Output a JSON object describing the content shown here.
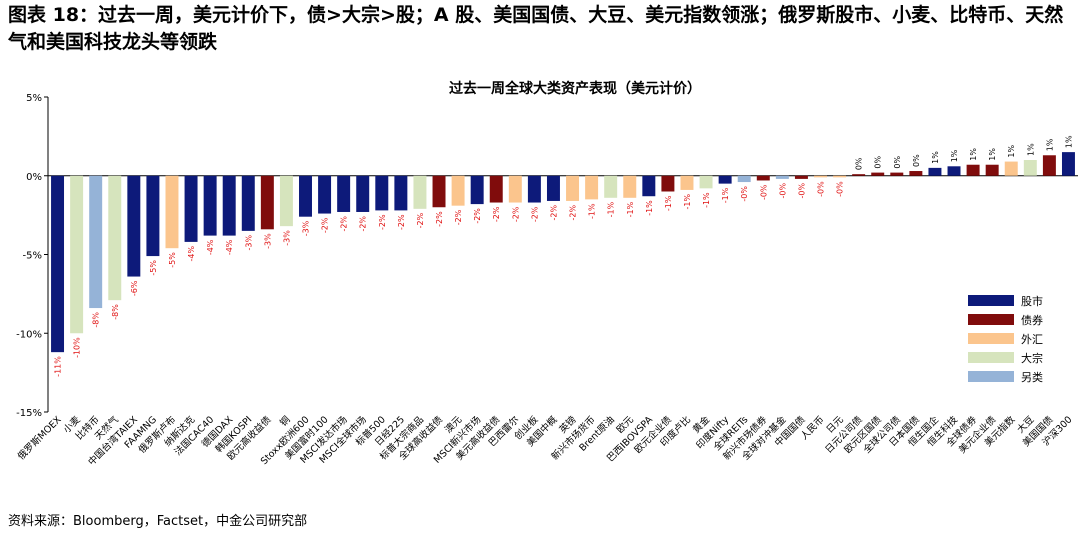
{
  "figure_title": "图表 18：过去一周，美元计价下，债>大宗>股；A 股、美国国债、大豆、美元指数领涨；俄罗斯股市、小麦、比特币、天然气和美国科技龙头等领跌",
  "source": "资料来源：Bloomberg，Factset，中金公司研究部",
  "colors": {
    "股市": "#0d1a7a",
    "债券": "#800c0c",
    "外汇": "#fbc58d",
    "大宗": "#d6e4bd",
    "另类": "#95b3d7"
  },
  "chart_data": {
    "type": "bar",
    "title": "过去一周全球大类资产表现（美元计价）",
    "ylim": [
      -15,
      5
    ],
    "yticks": [
      5,
      0,
      -5,
      -10,
      -15
    ],
    "ytick_labels": [
      "5%",
      "0%",
      "-5%",
      "-10%",
      "-15%"
    ],
    "legend_position": "right",
    "legend": [
      "股市",
      "债券",
      "外汇",
      "大宗",
      "另类"
    ],
    "categories": [
      "俄罗斯MOEX",
      "小麦",
      "比特币",
      "天然气",
      "中国台湾TAIEX",
      "FAAMNG",
      "俄罗斯卢布",
      "纳斯达克",
      "法国CAC40",
      "德国DAX",
      "韩国KOSPI",
      "欧元高收益债",
      "铜",
      "Stoxx欧洲600",
      "美国富时100",
      "MSCI发达市场",
      "MSCI全球市场",
      "标普500",
      "日经225",
      "标普大宗商品",
      "全球高收益债",
      "澳元",
      "MSCI新兴市场",
      "美元高收益债",
      "巴西雷尔",
      "创业板",
      "美国中概",
      "英镑",
      "新兴市场货币",
      "Brent原油",
      "欧元",
      "巴西IBOVSPA",
      "欧元企业债",
      "印度卢比",
      "黄金",
      "印度Nifty",
      "全球REITs",
      "新兴市场债券",
      "全球对冲基金",
      "中国国债",
      "人民币",
      "日元",
      "日元公司债",
      "欧元区国债",
      "全球公司债",
      "日本国债",
      "恒生国企",
      "恒生科技",
      "全球债券",
      "美元企业债",
      "美元指数",
      "大豆",
      "美国国债",
      "沪深300"
    ],
    "values": [
      -11.2,
      -10.0,
      -8.4,
      -7.9,
      -6.4,
      -5.1,
      -4.6,
      -4.2,
      -3.8,
      -3.8,
      -3.5,
      -3.4,
      -3.2,
      -2.6,
      -2.4,
      -2.3,
      -2.3,
      -2.2,
      -2.2,
      -2.1,
      -2.0,
      -1.9,
      -1.8,
      -1.7,
      -1.7,
      -1.7,
      -1.6,
      -1.6,
      -1.5,
      -1.4,
      -1.4,
      -1.3,
      -1.0,
      -0.9,
      -0.8,
      -0.5,
      -0.4,
      -0.3,
      -0.2,
      -0.2,
      -0.1,
      -0.1,
      0.1,
      0.2,
      0.2,
      0.3,
      0.5,
      0.6,
      0.7,
      0.7,
      0.9,
      1.0,
      1.3,
      1.5
    ],
    "data_labels": [
      "-11%",
      "-10%",
      "-8%",
      "-8%",
      "-6%",
      "-5%",
      "-5%",
      "-4%",
      "-4%",
      "-4%",
      "-3%",
      "-3%",
      "-3%",
      "-3%",
      "-2%",
      "-2%",
      "-2%",
      "-2%",
      "-2%",
      "-2%",
      "-2%",
      "-2%",
      "-2%",
      "-2%",
      "-2%",
      "-2%",
      "-2%",
      "-2%",
      "-1%",
      "-1%",
      "-1%",
      "-1%",
      "-1%",
      "-1%",
      "-1%",
      "-1%",
      "-0%",
      "-0%",
      "-0%",
      "-0%",
      "-0%",
      "-0%",
      "0%",
      "0%",
      "0%",
      "0%",
      "1%",
      "1%",
      "1%",
      "1%",
      "1%",
      "1%",
      "1%",
      "1%"
    ],
    "asset_class": [
      "股市",
      "大宗",
      "另类",
      "大宗",
      "股市",
      "股市",
      "外汇",
      "股市",
      "股市",
      "股市",
      "股市",
      "债券",
      "大宗",
      "股市",
      "股市",
      "股市",
      "股市",
      "股市",
      "股市",
      "大宗",
      "债券",
      "外汇",
      "股市",
      "债券",
      "外汇",
      "股市",
      "股市",
      "外汇",
      "外汇",
      "大宗",
      "外汇",
      "股市",
      "债券",
      "外汇",
      "大宗",
      "股市",
      "另类",
      "债券",
      "另类",
      "债券",
      "外汇",
      "外汇",
      "债券",
      "债券",
      "债券",
      "债券",
      "股市",
      "股市",
      "债券",
      "债券",
      "外汇",
      "大宗",
      "债券",
      "股市"
    ]
  }
}
